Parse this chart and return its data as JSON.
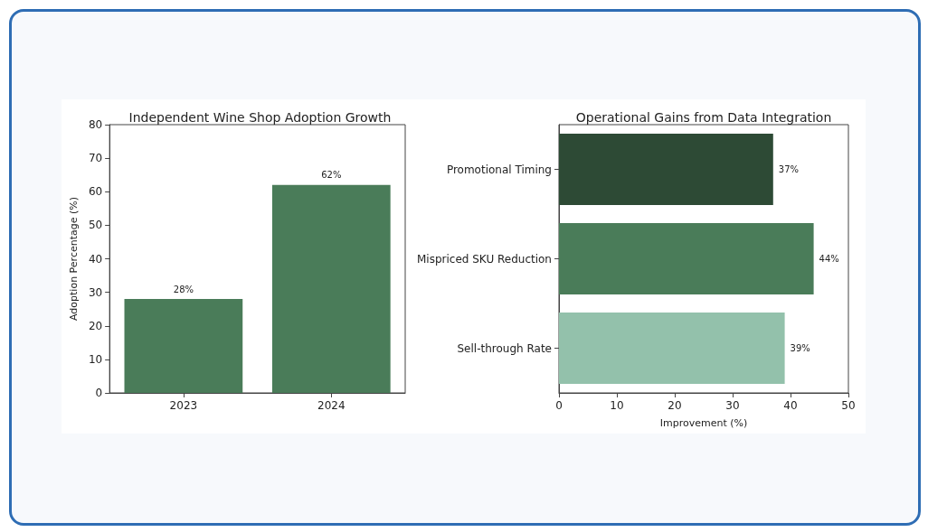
{
  "chart_data": [
    {
      "type": "bar",
      "title": "Independent Wine Shop Adoption Growth",
      "ylabel": "Adoption Percentage (%)",
      "categories": [
        "2023",
        "2024"
      ],
      "values": [
        28,
        62
      ],
      "value_labels": [
        "28%",
        "62%"
      ],
      "color": "#4a7c59",
      "ylim": [
        0,
        80
      ],
      "yticks": [
        0,
        10,
        20,
        30,
        40,
        50,
        60,
        70,
        80
      ]
    },
    {
      "type": "bar",
      "orientation": "horizontal",
      "title": "Operational Gains from Data Integration",
      "xlabel": "Improvement (%)",
      "categories": [
        "Promotional Timing",
        "Mispriced SKU Reduction",
        "Sell-through Rate"
      ],
      "values": [
        37,
        44,
        39
      ],
      "value_labels": [
        "37%",
        "44%",
        "39%"
      ],
      "colors": [
        "#2d4a35",
        "#4a7c59",
        "#93c1ab"
      ],
      "xlim": [
        0,
        50
      ],
      "xticks": [
        0,
        10,
        20,
        30,
        40,
        50
      ]
    }
  ]
}
